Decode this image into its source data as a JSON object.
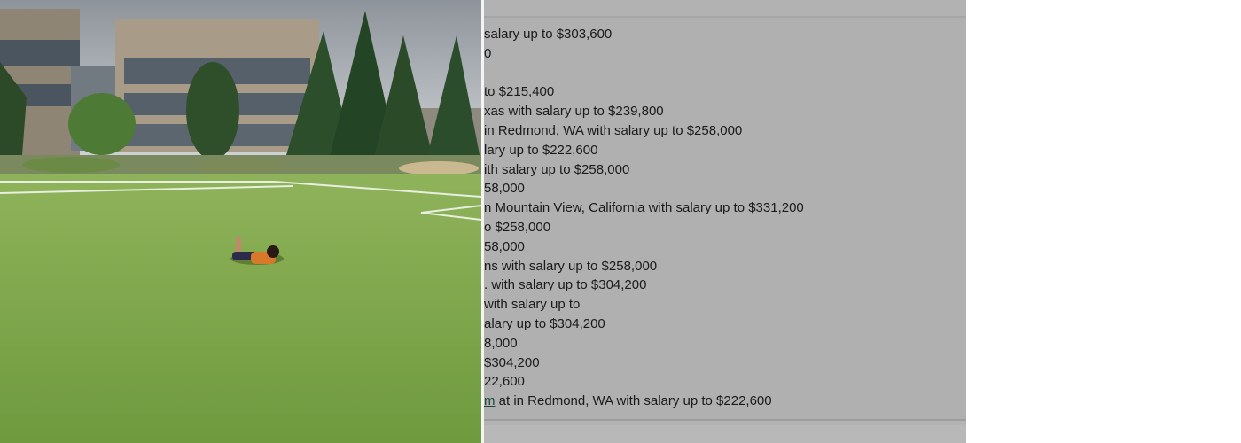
{
  "photo": {
    "description_icon": "campus-photo"
  },
  "panel": {
    "lines": [
      "salary up to $303,600",
      "0",
      "",
      "to $215,400",
      "xas with salary up to $239,800",
      "in Redmond, WA with salary up to $258,000",
      "lary up to $222,600",
      "ith salary up to $258,000",
      "58,000",
      "n Mountain View, California with salary up to $331,200",
      "o $258,000",
      "58,000",
      "ns with salary up to $258,000",
      ". with salary up to $304,200",
      "with salary up to",
      "alary up to $304,200",
      "8,000",
      "$304,200",
      "22,600"
    ],
    "last_line": {
      "link": "m",
      "rest": " at in Redmond, WA with salary up to $222,600"
    }
  }
}
